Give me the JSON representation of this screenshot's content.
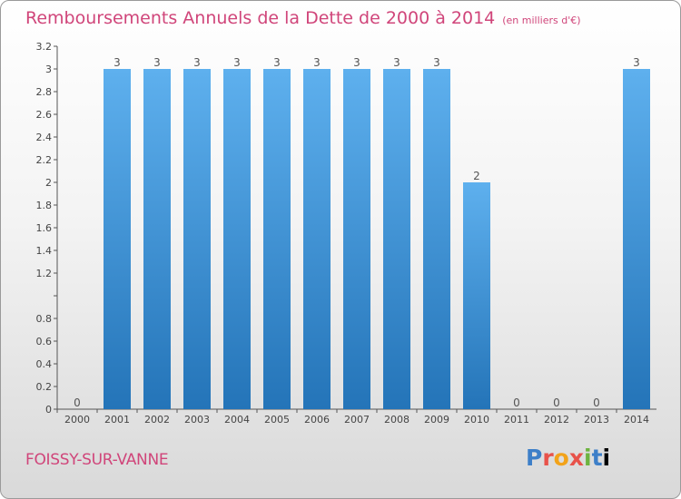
{
  "chart_data": {
    "type": "bar",
    "title": "Remboursements Annuels de la Dette de 2000 à 2014",
    "subtitle": "(en milliers d'€)",
    "categories": [
      "2000",
      "2001",
      "2002",
      "2003",
      "2004",
      "2005",
      "2006",
      "2007",
      "2008",
      "2009",
      "2010",
      "2011",
      "2012",
      "2013",
      "2014"
    ],
    "values": [
      0,
      3,
      3,
      3,
      3,
      3,
      3,
      3,
      3,
      3,
      2,
      0,
      0,
      0,
      3
    ],
    "data_labels": [
      "0",
      "3",
      "3",
      "3",
      "3",
      "3",
      "3",
      "3",
      "3",
      "3",
      "2",
      "0",
      "0",
      "0",
      "3"
    ],
    "ylim": [
      0,
      3.2
    ],
    "yticks": [
      0,
      0.2,
      0.4,
      0.6,
      0.8,
      1,
      1.2,
      1.4,
      1.6,
      1.8,
      2,
      2.2,
      2.4,
      2.6,
      2.8,
      3,
      3.2
    ],
    "ytick_labels": [
      "0",
      "0.2",
      "0.4",
      "0.6",
      "0.8",
      "",
      "1.2",
      "1.4",
      "1.6",
      "1.8",
      "2",
      "2.2",
      "2.4",
      "2.6",
      "2.8",
      "3",
      "3.2"
    ],
    "xlabel": "",
    "ylabel": "",
    "grid": false,
    "bar_color": "#3a92d8"
  },
  "footer": {
    "commune": "FOISSY-SUR-VANNE",
    "logo_letters": [
      "P",
      "r",
      "o",
      "x",
      "i",
      "t",
      "i"
    ]
  },
  "colors": {
    "title": "#d0457a"
  }
}
